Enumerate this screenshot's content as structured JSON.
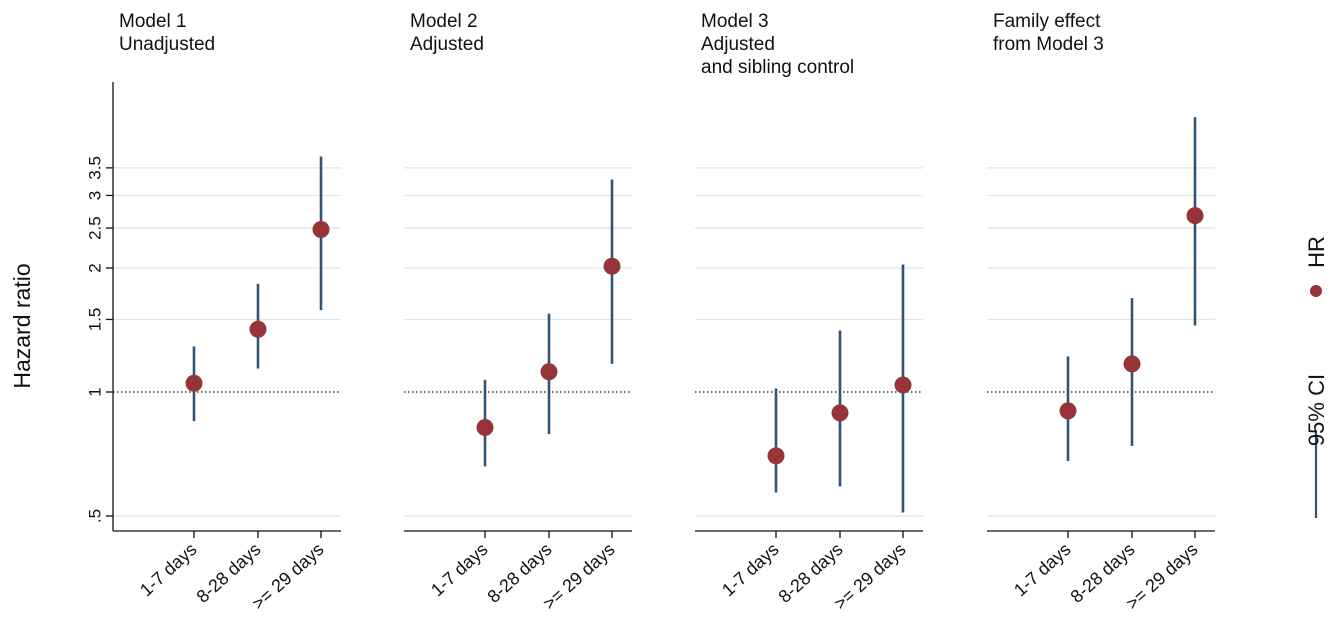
{
  "chart_data": {
    "type": "scatter",
    "ylabel": "Hazard ratio",
    "y_scale": "log",
    "y_ticks": [
      0.5,
      1,
      1.5,
      2,
      2.5,
      3,
      3.5
    ],
    "y_tick_labels": [
      ".5",
      "1",
      "1.5",
      "2",
      "2.5",
      "3",
      "3.5"
    ],
    "reference_line": 1,
    "grid": true,
    "colors": {
      "hr": "#96343a",
      "ci": "#2f5475",
      "grid": "#dce7ea",
      "axis": "#111111"
    },
    "categories": [
      "1-7 days",
      "8-28 days",
      ">= 29 days"
    ],
    "panels": [
      {
        "title": [
          "Model 1",
          "Unadjusted"
        ],
        "hr": [
          1.05,
          1.42,
          2.48
        ],
        "ci_low": [
          0.85,
          1.14,
          1.58
        ],
        "ci_high": [
          1.29,
          1.83,
          3.73
        ]
      },
      {
        "title": [
          "Model 2",
          "Adjusted"
        ],
        "hr": [
          0.82,
          1.12,
          2.02
        ],
        "ci_low": [
          0.66,
          0.79,
          1.17
        ],
        "ci_high": [
          1.07,
          1.55,
          3.28
        ]
      },
      {
        "title": [
          "Model 3",
          "Adjusted",
          "and sibling control"
        ],
        "hr": [
          0.7,
          0.89,
          1.04
        ],
        "ci_low": [
          0.57,
          0.59,
          0.51
        ],
        "ci_high": [
          1.02,
          1.41,
          2.04
        ]
      },
      {
        "title": [
          "Family effect",
          "from Model 3"
        ],
        "hr": [
          0.9,
          1.17,
          2.68
        ],
        "ci_low": [
          0.68,
          0.74,
          1.45
        ],
        "ci_high": [
          1.22,
          1.69,
          4.65
        ]
      }
    ],
    "legend": {
      "position": "right",
      "items": [
        {
          "label": "HR",
          "marker": "dot"
        },
        {
          "label": "95% CI",
          "marker": "line"
        }
      ]
    }
  }
}
